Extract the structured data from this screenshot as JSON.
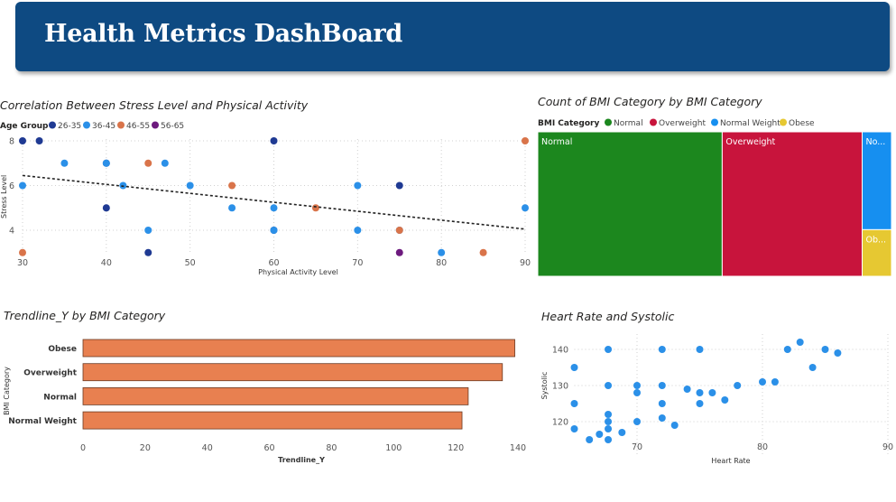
{
  "header": {
    "title": "Health Metrics DashBoard"
  },
  "colors": {
    "banner": "#0e4a82",
    "age_26_35": "#1f3a93",
    "age_36_45": "#2b90e8",
    "age_46_55": "#d9744a",
    "age_56_65": "#6d1a7e",
    "bar": "#e88050",
    "bmi_normal": "#1c871e",
    "bmi_overweight": "#c8143c",
    "bmi_normal_weight": "#168ff0",
    "bmi_obese": "#e6c832",
    "scatter_blue": "#2b90e8"
  },
  "chart_data": [
    {
      "id": "stress",
      "type": "scatter",
      "title": "Correlation Between Stress Level and Physical Activity",
      "xlabel": "Physical Activity Level",
      "ylabel": "Stress Level",
      "xlim": [
        30,
        90
      ],
      "ylim": [
        3,
        8
      ],
      "xticks": [
        "30",
        "40",
        "50",
        "60",
        "70",
        "80",
        "90"
      ],
      "yticks": [
        "4",
        "6",
        "8"
      ],
      "grid": true,
      "legend": {
        "title": "Age Group",
        "placement": "top-left",
        "entries": [
          "26-35",
          "36-45",
          "46-55",
          "56-65"
        ]
      },
      "trendline": {
        "x": [
          30,
          90
        ],
        "y": [
          6.45,
          4.05
        ],
        "style": "dashed"
      },
      "series": [
        {
          "name": "26-35",
          "points": [
            [
              30,
              8
            ],
            [
              32,
              8
            ],
            [
              60,
              8
            ],
            [
              40,
              7
            ],
            [
              75,
              6
            ],
            [
              40,
              5
            ],
            [
              45,
              3
            ],
            [
              60,
              4
            ]
          ]
        },
        {
          "name": "36-45",
          "points": [
            [
              35,
              7
            ],
            [
              40,
              7
            ],
            [
              47,
              7
            ],
            [
              30,
              6
            ],
            [
              42,
              6
            ],
            [
              50,
              6
            ],
            [
              70,
              6
            ],
            [
              55,
              5
            ],
            [
              60,
              5
            ],
            [
              90,
              5
            ],
            [
              45,
              4
            ],
            [
              60,
              4
            ],
            [
              70,
              4
            ],
            [
              75,
              4
            ],
            [
              80,
              3
            ]
          ]
        },
        {
          "name": "46-55",
          "points": [
            [
              45,
              7
            ],
            [
              55,
              6
            ],
            [
              65,
              5
            ],
            [
              75,
              4
            ],
            [
              30,
              3
            ],
            [
              85,
              3
            ],
            [
              90,
              8
            ]
          ]
        },
        {
          "name": "56-65",
          "points": [
            [
              75,
              3
            ]
          ]
        }
      ]
    },
    {
      "id": "treemap",
      "type": "treemap",
      "title": "Count of BMI Category by BMI Category",
      "legend": {
        "title": "BMI Category",
        "placement": "top-left",
        "entries": [
          "Normal",
          "Overweight",
          "Normal Weight",
          "Obese"
        ]
      },
      "tiles": [
        {
          "label": "Normal",
          "value": 195
        },
        {
          "label": "Overweight",
          "value": 148
        },
        {
          "label": "No...",
          "value": 21
        },
        {
          "label": "Ob...",
          "value": 10
        }
      ]
    },
    {
      "id": "trendline_bar",
      "type": "bar",
      "orientation": "horizontal",
      "title": "Trendline_Y by BMI Category",
      "xlabel": "Trendline_Y",
      "ylabel": "BMI Category",
      "categories": [
        "Obese",
        "Overweight",
        "Normal",
        "Normal Weight"
      ],
      "values": [
        139,
        135,
        124,
        122
      ],
      "xlim": [
        0,
        145
      ],
      "xticks": [
        "0",
        "20",
        "40",
        "60",
        "80",
        "100",
        "120",
        "140"
      ]
    },
    {
      "id": "heart",
      "type": "scatter",
      "title": "Heart Rate and Systolic",
      "xlabel": "Heart Rate",
      "ylabel": "Systolic",
      "xlim": [
        65,
        90
      ],
      "ylim": [
        113,
        143
      ],
      "xticks": [
        "70",
        "80",
        "90"
      ],
      "yticks": [
        "120",
        "130",
        "140"
      ],
      "grid": true,
      "points": [
        [
          65,
          135
        ],
        [
          65,
          125
        ],
        [
          65,
          118
        ],
        [
          66.2,
          115
        ],
        [
          67,
          116.5
        ],
        [
          67.7,
          115
        ],
        [
          67.7,
          118
        ],
        [
          67.7,
          120
        ],
        [
          67.7,
          122
        ],
        [
          67.7,
          130
        ],
        [
          67.7,
          140
        ],
        [
          68.8,
          117
        ],
        [
          70,
          120
        ],
        [
          70,
          128
        ],
        [
          70,
          130
        ],
        [
          72,
          121
        ],
        [
          72,
          125
        ],
        [
          72,
          130
        ],
        [
          72,
          140
        ],
        [
          73,
          119
        ],
        [
          74,
          129
        ],
        [
          75,
          125
        ],
        [
          75,
          128
        ],
        [
          75,
          140
        ],
        [
          76,
          128
        ],
        [
          77,
          126
        ],
        [
          78,
          130
        ],
        [
          80,
          131
        ],
        [
          81,
          131
        ],
        [
          82,
          140
        ],
        [
          83,
          142
        ],
        [
          84,
          135
        ],
        [
          85,
          140
        ],
        [
          86,
          139
        ]
      ]
    }
  ]
}
